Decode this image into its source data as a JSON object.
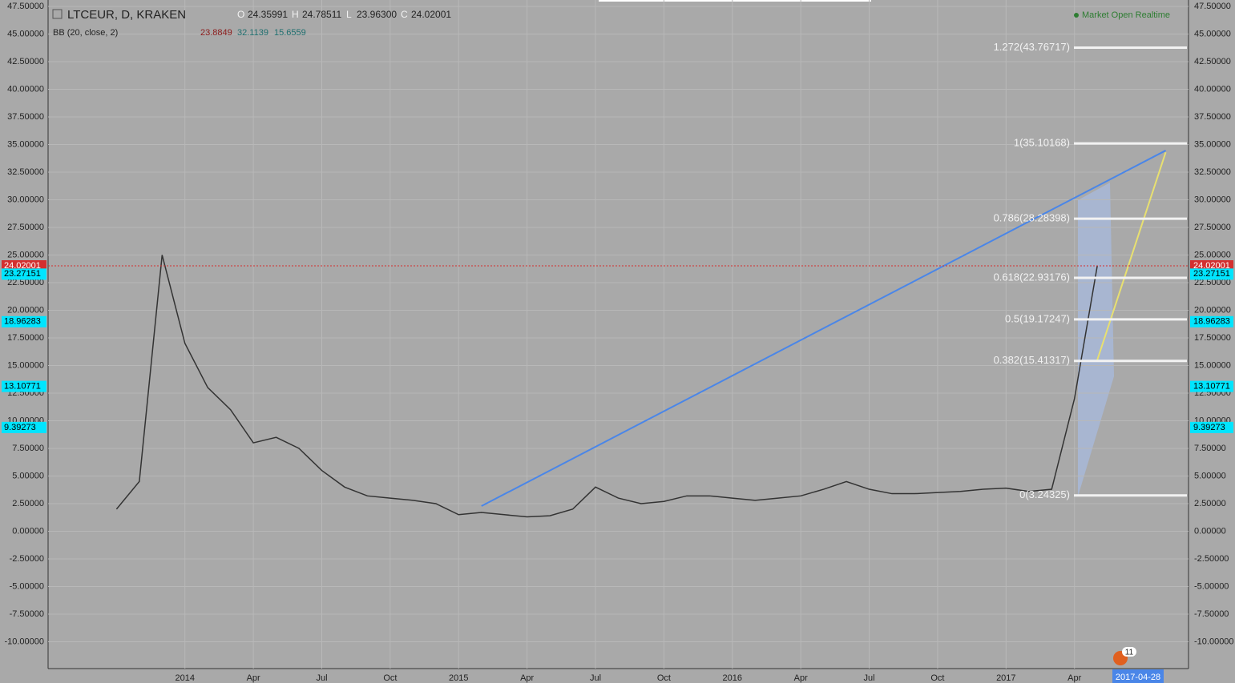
{
  "chart_data": {
    "type": "line",
    "title": "LTCEUR, D, KRAKEN",
    "ohlc": {
      "labels": [
        "O",
        "H",
        "L",
        "C"
      ],
      "values": [
        24.35991,
        24.78511,
        23.963,
        24.02001
      ],
      "value_labels": [
        "24.35991",
        "24.78511",
        "23.96300",
        "24.02001"
      ]
    },
    "indicator": {
      "name": "BB (20, close, 2)",
      "values": [
        23.8849,
        32.1139,
        15.6559
      ],
      "colors": [
        "#8b1a1a",
        "#1f6f6f",
        "#1f6f6f"
      ]
    },
    "status": "Market Open Realtime",
    "current_date": "2017-04-28",
    "notification_count": "11",
    "color": "#333333",
    "x": [
      "2013-10",
      "2013-11",
      "2013-12",
      "2014-01",
      "2014-02",
      "2014-03",
      "2014-04",
      "2014-05",
      "2014-06",
      "2014-07",
      "2014-08",
      "2014-09",
      "2014-10",
      "2014-11",
      "2014-12",
      "2015-01",
      "2015-02",
      "2015-03",
      "2015-04",
      "2015-05",
      "2015-06",
      "2015-07",
      "2015-08",
      "2015-09",
      "2015-10",
      "2015-11",
      "2015-12",
      "2016-01",
      "2016-02",
      "2016-03",
      "2016-04",
      "2016-05",
      "2016-06",
      "2016-07",
      "2016-08",
      "2016-09",
      "2016-10",
      "2016-11",
      "2016-12",
      "2017-01",
      "2017-02",
      "2017-03",
      "2017-04",
      "2017-05"
    ],
    "values": [
      2.0,
      4.5,
      25,
      17,
      13,
      11,
      8,
      8.5,
      7.5,
      5.5,
      4,
      3.2,
      3.0,
      2.8,
      2.5,
      1.5,
      1.7,
      1.5,
      1.3,
      1.4,
      2.0,
      4.0,
      3.0,
      2.5,
      2.7,
      3.2,
      3.2,
      3.0,
      2.8,
      3.0,
      3.2,
      3.8,
      4.5,
      3.8,
      3.4,
      3.4,
      3.5,
      3.6,
      3.8,
      3.9,
      3.6,
      3.8,
      12,
      24.02
    ],
    "xlim": [
      "2013-07",
      "2017-09"
    ],
    "xticks": [
      {
        "value": "2014-01",
        "label": "2014"
      },
      {
        "value": "2014-04",
        "label": "Apr"
      },
      {
        "value": "2014-07",
        "label": "Jul"
      },
      {
        "value": "2014-10",
        "label": "Oct"
      },
      {
        "value": "2015-01",
        "label": "2015"
      },
      {
        "value": "2015-04",
        "label": "Apr"
      },
      {
        "value": "2015-07",
        "label": "Jul"
      },
      {
        "value": "2015-10",
        "label": "Oct"
      },
      {
        "value": "2016-01",
        "label": "2016"
      },
      {
        "value": "2016-04",
        "label": "Apr"
      },
      {
        "value": "2016-07",
        "label": "Jul"
      },
      {
        "value": "2016-10",
        "label": "Oct"
      },
      {
        "value": "2017-01",
        "label": "2017"
      },
      {
        "value": "2017-04",
        "label": "Apr"
      }
    ],
    "ylim": [
      -12.43,
      48.08
    ],
    "yticks": [
      {
        "value": 47.5,
        "label": "47.50000"
      },
      {
        "value": 45,
        "label": "45.00000"
      },
      {
        "value": 42.5,
        "label": "42.50000"
      },
      {
        "value": 40,
        "label": "40.00000"
      },
      {
        "value": 37.5,
        "label": "37.50000"
      },
      {
        "value": 35,
        "label": "35.00000"
      },
      {
        "value": 32.5,
        "label": "32.50000"
      },
      {
        "value": 30,
        "label": "30.00000"
      },
      {
        "value": 27.5,
        "label": "27.50000"
      },
      {
        "value": 25,
        "label": "25.00000"
      },
      {
        "value": 22.5,
        "label": "22.50000"
      },
      {
        "value": 20,
        "label": "20.00000"
      },
      {
        "value": 17.5,
        "label": "17.50000"
      },
      {
        "value": 15,
        "label": "15.00000"
      },
      {
        "value": 12.5,
        "label": "12.50000"
      },
      {
        "value": 10,
        "label": "10.00000"
      },
      {
        "value": 7.5,
        "label": "7.50000"
      },
      {
        "value": 5,
        "label": "5.00000"
      },
      {
        "value": 2.5,
        "label": "2.50000"
      },
      {
        "value": 0,
        "label": "0.00000"
      },
      {
        "value": -2.5,
        "label": "-2.50000"
      },
      {
        "value": -5,
        "label": "-5.00000"
      },
      {
        "value": -7.5,
        "label": "-7.50000"
      },
      {
        "value": -10,
        "label": "-10.00000"
      }
    ],
    "grid": true,
    "price_labels": [
      {
        "value": 24.02001,
        "color": "#d32f2f"
      },
      {
        "value": 23.27151,
        "color": "#00e5ff"
      },
      {
        "value": 18.96283,
        "color": "#00e5ff"
      },
      {
        "value": 13.10771,
        "color": "#00e5ff"
      },
      {
        "value": 9.39273,
        "color": "#00e5ff"
      }
    ],
    "fib_levels": [
      {
        "label": "1.272(43.76717)",
        "value": 43.76717
      },
      {
        "label": "1(35.10168)",
        "value": 35.10168
      },
      {
        "label": "0.786(28.28398)",
        "value": 28.28398
      },
      {
        "label": "0.618(22.93176)",
        "value": 22.93176
      },
      {
        "label": "0.5(19.17247)",
        "value": 19.17247
      },
      {
        "label": "0.382(15.41317)",
        "value": 15.41317
      },
      {
        "label": "0(3.24325)",
        "value": 3.24325
      }
    ],
    "trend_lines": [
      {
        "x": [
          "2015-02",
          "2017-08"
        ],
        "values": [
          2.28,
          34.46
        ],
        "color": "#4a86e8"
      },
      {
        "x": [
          "2017-05",
          "2017-08"
        ],
        "values": [
          15.5,
          34.3
        ],
        "color": "#e8e070"
      }
    ]
  }
}
